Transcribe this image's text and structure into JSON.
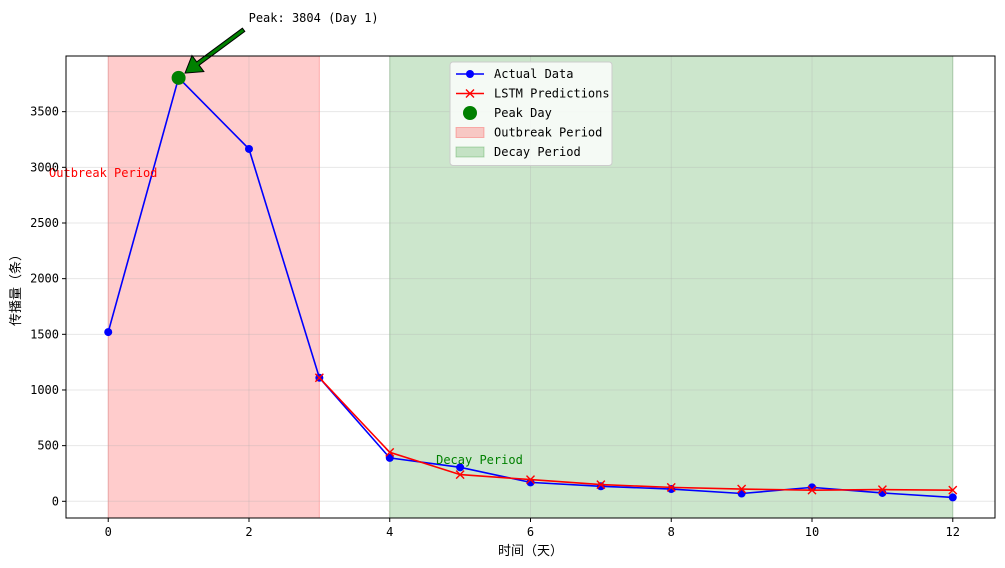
{
  "chart_data": {
    "type": "line",
    "xlabel": "时间（天）",
    "ylabel": "传播量（条）",
    "xlim": [
      -0.6,
      12.6
    ],
    "ylim": [
      -150,
      4000
    ],
    "xticks": [
      0,
      2,
      4,
      6,
      8,
      10,
      12
    ],
    "yticks": [
      0,
      500,
      1000,
      1500,
      2000,
      2500,
      3000,
      3500
    ],
    "grid": true,
    "legend_position": "upper center",
    "series": [
      {
        "name": "Actual Data",
        "color": "#0000ff",
        "marker": "circle",
        "x": [
          0,
          1,
          2,
          3,
          4,
          5,
          6,
          7,
          8,
          9,
          10,
          11,
          12
        ],
        "values": [
          1520,
          3804,
          3165,
          1110,
          390,
          305,
          170,
          135,
          110,
          70,
          125,
          75,
          35
        ]
      },
      {
        "name": "LSTM Predictions",
        "color": "#ff0000",
        "marker": "x",
        "x": [
          3,
          4,
          5,
          6,
          7,
          8,
          9,
          10,
          11,
          12
        ],
        "values": [
          1110,
          440,
          240,
          195,
          150,
          125,
          110,
          100,
          105,
          100
        ]
      }
    ],
    "peak": {
      "legend_label": "Peak Day",
      "x": 1,
      "y": 3804,
      "color": "#008000",
      "annotation": "Peak: 3804 (Day 1)"
    },
    "regions": [
      {
        "legend_label": "Outbreak Period",
        "start": 0,
        "end": 3,
        "color": "#ff0000",
        "label": "Outbreak Period",
        "label_x": -0.5,
        "label_y": 2950,
        "label_color": "#ff0000"
      },
      {
        "legend_label": "Decay Period",
        "start": 4,
        "end": 12,
        "color": "#008000",
        "label": "Decay Period",
        "label_x": 5,
        "label_y": 370,
        "label_color": "#008000"
      }
    ]
  }
}
